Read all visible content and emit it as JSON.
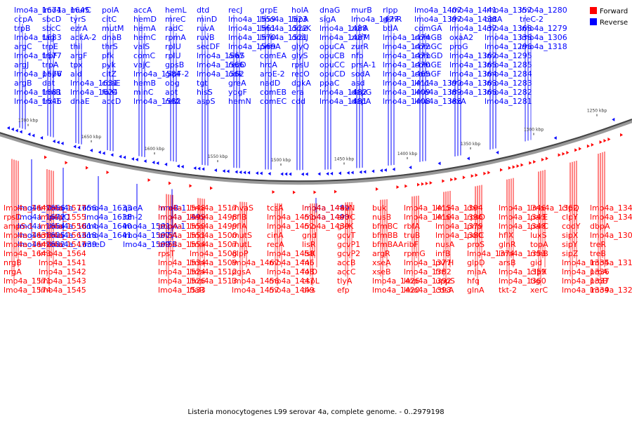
{
  "caption": "Listeria monocytogenes L99 serovar 4a, complete genome. - 0..2979198",
  "legend": [
    {
      "label": "Forward",
      "color": "#ff0000"
    },
    {
      "label": "Reverse",
      "color": "#0000ff"
    }
  ],
  "ticks": [
    "1250 kbp",
    "1300 kbp",
    "1350 kbp",
    "1400 kbp",
    "1450 kbp",
    "1500 kbp",
    "1550 kbp",
    "1600 kbp",
    "1650 kbp",
    "1700 kbp"
  ],
  "reverse_labels": [
    "lmo4a_1671",
    "ccpA",
    "trpB",
    "lmo4a_1683",
    "argC",
    "lmo4a_1677",
    "argJ",
    "lmo4a_1676",
    "argB",
    "lmo4a_1681",
    "lmo4a_1646",
    "lmo4a_1645",
    "sbcD",
    "sbcC",
    "tag",
    "trpE",
    "trpF",
    "trpA",
    "pepV",
    "dat",
    "trmB",
    "trx-1",
    "murC",
    "tyrS",
    "ezrA",
    "ackA-2",
    "thil",
    "argF",
    "tpx",
    "ald",
    "lmo4a_1631",
    "lmo4a_1624",
    "dnaE",
    "polA",
    "citC",
    "mutM",
    "dnaB",
    "thrS",
    "pfk",
    "pyk",
    "citZ",
    "coaE",
    "folC",
    "accD",
    "accA",
    "hemD",
    "hemA",
    "hemC",
    "valS",
    "comC",
    "vajC",
    "lmo4a_1584",
    "hemB",
    "minC",
    "lmo4a_1582",
    "hemL",
    "mreC",
    "radC",
    "rpmA",
    "rpIU",
    "rplU",
    "gpsB",
    "glpF-2",
    "obg",
    "apt",
    "relA",
    "dtd",
    "minD",
    "ruvA",
    "ruvB",
    "secDF",
    "lmo4a_1567",
    "lmo4a_1566",
    "lmo4a_1562",
    "tgt",
    "hisS",
    "aspS",
    "recJ",
    "lmo4a_1559",
    "lmo4a_1561",
    "lmo4a_1570",
    "lmo4a_1569",
    "alaS",
    "recD",
    "udk",
    "greA",
    "yqgF",
    "hemN",
    "grpE",
    "lmo4a_1523",
    "lmo4a_1522",
    "lmo4a_1521",
    "prmA",
    "comEA",
    "hrcA",
    "aroE-2",
    "nadD",
    "comEB",
    "comEC",
    "holA",
    "lepA",
    "dnaK",
    "dnaJ",
    "glyQ",
    "glyS",
    "rpsU",
    "recO",
    "dgkA",
    "era",
    "cdd",
    "dnaG",
    "sigA",
    "lmo4a_1488",
    "lmo4a_1487",
    "opuCA",
    "opuCB",
    "opuCC",
    "opuCD",
    "ppaC",
    "lmo4a_1482",
    "lmo4a_1481",
    "murB",
    "lmo4a_1477",
    "zurA",
    "zurM",
    "zurR",
    "nfo",
    "prsA-1",
    "sodA",
    "asd",
    "dapG",
    "dapA",
    "rlpp",
    "gshR",
    "btlA",
    "lmo4a_1474",
    "lmo4a_1472",
    "lmo4a_1471",
    "lmo4a_1470",
    "lmo4a_1465",
    "lmo4a_1411",
    "lmo4a_1409",
    "lmo4a_1408",
    "lmo4a_1407",
    "lmo4a_1397",
    "comGA",
    "comGB",
    "comGC",
    "comGD",
    "comGE",
    "comGF",
    "lmo4a_1390",
    "lmo4a_1389",
    "lmo4a_1388",
    "lmo4a_1441",
    "lmo4a_1438",
    "lmo4a_1437",
    "oxaA2",
    "proG",
    "lmo4a_1367",
    "lmo4a_1365",
    "lmo4a_1364",
    "lmo4a_1363",
    "lmo4a_1366",
    "lexA",
    "lmo4a_1357",
    "oatA",
    "lmo4a_1368",
    "lmo4a_1338",
    "lmo4a_1296",
    "lmo4a_1295",
    "lmo4a_1285",
    "lmo4a_1284",
    "lmo4a_1283",
    "lmo4a_1282",
    "lmo4a_1281",
    "lmo4a_1280",
    "treC-2",
    "lmo4a_1279",
    "lmo4a_1306",
    "lmo4a_1318",
    "lmo4a_1666",
    "lmo4a_1672",
    "lmo4a_1654",
    "lmo4a_1625",
    "lmo4a_1632",
    "lmo4a_1656",
    "pepQ",
    "lmo4a_1614",
    "lmo4a_1618",
    "lmo4a_1639",
    "lmo4a_1633",
    "lmo4a_1638",
    "lmo4a_1640",
    "lmo4a_1641",
    "mreD",
    "queA",
    "ldh-2",
    "lmo4a_1591",
    "lmo4a_1597",
    "lmo4a_1599",
    "mreB-1",
    "lmo4a_1492",
    "pbpA-1",
    "bilEA",
    "bilEB",
    "lmo4a_1489",
    "lmo4a_1490"
  ],
  "forward_labels": [
    "lmo4a_1647",
    "rpsD",
    "ampS-1",
    "lmo4a_1636",
    "lmo4a_1642",
    "lmo4a_1643",
    "nrgB",
    "nrgA",
    "lmo4a_1571",
    "lmo4a_1574",
    "lmo4a_1577",
    "lmo4a_1555",
    "lmo4a_1556",
    "lmo4a_1563",
    "lmo4a_1547",
    "lmo4a_1564",
    "lmo4a_1541",
    "lmo4a_1542",
    "lmo4a_1543",
    "lmo4a_1545",
    "lmo4a_1548",
    "lmo4a_1549",
    "lmo4a_1550",
    "lmo4a_1551",
    "lmo4a_1554",
    "rpsT",
    "lmo4a_1534",
    "lmo4a_1524",
    "lmo4a_1526",
    "lmo4a_1533",
    "lmo4a_1517",
    "lmo4a_1498",
    "lmo4a_1499",
    "lmo4a_1500",
    "lmo4a_1507",
    "lmo4a_1508",
    "lmo4a_1509",
    "lmo4a_1512",
    "lmo4a_1513",
    "flaR",
    "mvaS",
    "pflB",
    "pflA",
    "mutS",
    "mutL",
    "glpP",
    "lmo4a_1467",
    "pgsA",
    "lmo4a_1456",
    "lmo4a_1457",
    "tcsA",
    "lmo4a_1451",
    "lmo4a_1452",
    "cinA",
    "recA",
    "lmo4a_1450",
    "lmo4a_1446",
    "lmo4a_1448",
    "lmo4a_1447",
    "lmo4a_1449",
    "lmo4a_1442",
    "lmo4a_1443",
    "lmo4a_1439",
    "gnd",
    "lisR",
    "lisK",
    "fni",
    "folD",
    "cspL",
    "dxs",
    "recN",
    "ahrC",
    "glcK",
    "gcvT",
    "gcvP1",
    "gcvP2",
    "accB",
    "accC",
    "tlyA",
    "efp",
    "buk",
    "nusB",
    "bfmBC",
    "bfmBB",
    "bfmBAA",
    "argR",
    "xseA",
    "xseB",
    "lmo4a_1426",
    "lmo4a_1420",
    "lmo4a_1415",
    "lmo4a_1410",
    "rbfA",
    "truB",
    "ribF",
    "rpmG",
    "lmo4a_1377",
    "lmo4a_1382",
    "lmo4a_1392",
    "lmo4a_1393",
    "lmo4a_1394",
    "lmo4a_1396",
    "lmo4a_1379",
    "lmo4a_1380",
    "nusA",
    "infB",
    "pvrH",
    "frr",
    "uppS",
    "cdsA",
    "dxr",
    "rpsO",
    "pnp",
    "polC",
    "proS",
    "lmo4a_1374",
    "glpD",
    "miaA",
    "hfq",
    "glnA",
    "lmo4a_1346",
    "lmo4a_1343",
    "lmo4a_1348",
    "hflX",
    "glnR",
    "lmo4a_1353",
    "arsB",
    "lmo4a_1359",
    "lmo4a_1360",
    "tkt-2",
    "lmo4a_1362",
    "parE",
    "parC",
    "luxS",
    "topA",
    "rnhB",
    "gid",
    "clpX",
    "tig",
    "xerC",
    "clpQ",
    "clpY",
    "codY",
    "sipX",
    "sipY",
    "sipZ",
    "lmo4a_1335",
    "lmo4a_1336",
    "lmo4a_1337",
    "lmo4a_1339",
    "lmo4a_1344",
    "lmo4a_1345",
    "dbpA",
    "lmo4a_1304",
    "treR",
    "treB",
    "lmo4a_1312",
    "proA",
    "proB",
    "lmo4a_1320"
  ]
}
